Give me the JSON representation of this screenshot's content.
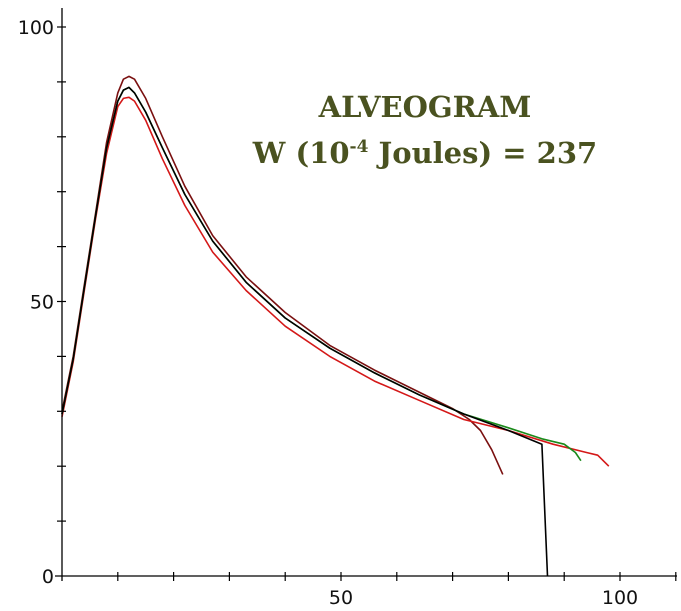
{
  "chart_data": {
    "type": "line",
    "title_line1": "ALVEOGRAM",
    "title_line2_prefix": "W (10",
    "title_line2_sup": "-4",
    "title_line2_suffix": " Joules) = 237",
    "title_color": "#4a5220",
    "xlabel": "",
    "ylabel": "",
    "xlim": [
      0,
      112
    ],
    "ylim": [
      0,
      103
    ],
    "x_ticks": [
      0,
      10,
      20,
      30,
      40,
      50,
      60,
      70,
      80,
      90,
      100,
      110
    ],
    "x_tick_labels": [
      {
        "value": 50,
        "label": "50"
      },
      {
        "value": 100,
        "label": "100"
      }
    ],
    "y_ticks": [
      0,
      10,
      20,
      30,
      40,
      50,
      60,
      70,
      80,
      90,
      100
    ],
    "y_tick_labels": [
      {
        "value": 0,
        "label": "0"
      },
      {
        "value": 50,
        "label": "50"
      },
      {
        "value": 100,
        "label": "100"
      }
    ],
    "grid": false,
    "legend": "none",
    "series": [
      {
        "color": "#7a1010",
        "x": [
          0,
          2,
          4,
          6,
          8,
          10,
          11,
          12,
          13,
          15,
          18,
          22,
          27,
          33,
          40,
          48,
          56,
          64,
          70,
          73,
          75,
          77,
          79
        ],
        "y": [
          30,
          40,
          53,
          66,
          79,
          88,
          90.5,
          91,
          90.5,
          87,
          80,
          71,
          62,
          54.5,
          48,
          42,
          37.5,
          33.5,
          30.5,
          28.5,
          26.5,
          23,
          18.5
        ]
      },
      {
        "color": "#d41818",
        "x": [
          0,
          2,
          4,
          6,
          8,
          10,
          11,
          12,
          13,
          15,
          18,
          22,
          27,
          33,
          40,
          48,
          56,
          64,
          72,
          80,
          88,
          94,
          96,
          98
        ],
        "y": [
          29,
          39,
          52,
          65,
          77,
          85.5,
          87,
          87.2,
          86.5,
          83,
          76,
          67.5,
          59,
          52,
          45.5,
          40,
          35.5,
          32,
          28.5,
          26.5,
          24,
          22.5,
          22,
          20
        ]
      },
      {
        "color": "#1a8a1a",
        "x": [
          0,
          2,
          4,
          6,
          8,
          10,
          11,
          12,
          13,
          15,
          18,
          22,
          27,
          33,
          40,
          48,
          56,
          64,
          72,
          80,
          86,
          90,
          92,
          93
        ],
        "y": [
          29.5,
          39.5,
          52.5,
          65.5,
          78,
          86.5,
          88.5,
          89,
          88,
          84.5,
          78,
          69.5,
          61,
          53.5,
          47,
          41.5,
          37,
          33,
          29.5,
          27,
          25,
          24,
          22.5,
          21
        ]
      },
      {
        "color": "#000000",
        "x": [
          0,
          2,
          4,
          6,
          8,
          10,
          11,
          12,
          13,
          15,
          18,
          22,
          27,
          33,
          40,
          48,
          56,
          64,
          72,
          80,
          86,
          86.5,
          87
        ],
        "y": [
          29.5,
          39.5,
          52.5,
          65.5,
          78,
          86.5,
          88.5,
          89,
          88,
          84.5,
          78,
          69.5,
          61,
          53.5,
          47,
          41.5,
          37,
          33,
          29.5,
          26.5,
          24,
          12,
          0
        ]
      }
    ]
  }
}
